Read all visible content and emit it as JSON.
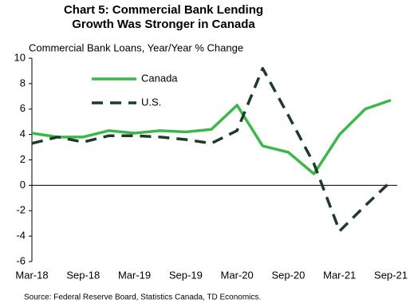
{
  "chart_data": {
    "type": "line",
    "title": "Chart 5: Commercial Bank Lending Growth Was Stronger in Canada",
    "subtitle": "Commercial Bank Loans, Year/Year % Change",
    "source": "Source: Federal Reserve Board, Statistics Canada, TD Economics.",
    "categories": [
      "Mar-18",
      null,
      "Sep-18",
      null,
      "Mar-19",
      null,
      "Sep-19",
      null,
      "Mar-20",
      null,
      "Sep-20",
      null,
      "Mar-21",
      null,
      "Sep-21"
    ],
    "series": [
      {
        "name": "Canada",
        "color": "#3cb84a",
        "dash": false,
        "values": [
          4.1,
          3.8,
          3.8,
          4.3,
          4.1,
          4.3,
          4.2,
          4.4,
          6.3,
          3.1,
          2.6,
          0.9,
          4.0,
          6.0,
          6.7
        ]
      },
      {
        "name": "U.S.",
        "color": "#1f3b27",
        "dash": true,
        "values": [
          3.3,
          3.8,
          3.4,
          3.9,
          3.9,
          3.8,
          3.6,
          3.3,
          4.3,
          9.2,
          5.5,
          1.7,
          -3.6,
          -1.6,
          0.3
        ]
      }
    ],
    "ylim": [
      -6,
      10
    ],
    "yticks": [
      -6,
      -4,
      -2,
      0,
      2,
      4,
      6,
      8,
      10
    ],
    "grid": false,
    "legend": "upper left"
  }
}
